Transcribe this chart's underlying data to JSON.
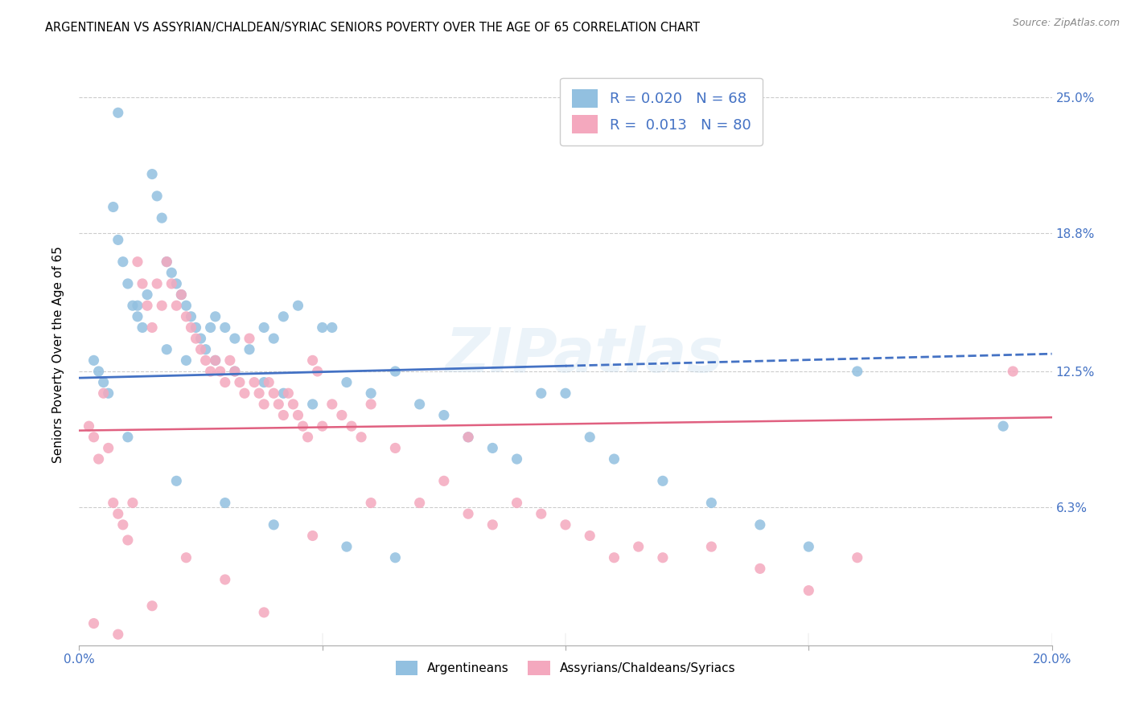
{
  "title": "ARGENTINEAN VS ASSYRIAN/CHALDEAN/SYRIAC SENIORS POVERTY OVER THE AGE OF 65 CORRELATION CHART",
  "source": "Source: ZipAtlas.com",
  "ylabel": "Seniors Poverty Over the Age of 65",
  "xlim": [
    0.0,
    0.2
  ],
  "ylim": [
    0.0,
    0.265
  ],
  "yticks": [
    0.063,
    0.125,
    0.188,
    0.25
  ],
  "ytick_labels": [
    "6.3%",
    "12.5%",
    "18.8%",
    "25.0%"
  ],
  "xticks": [
    0.0,
    0.05,
    0.1,
    0.15,
    0.2
  ],
  "xtick_labels": [
    "0.0%",
    "",
    "",
    "",
    "20.0%"
  ],
  "blue_R": "R = 0.020",
  "blue_N": "N = 68",
  "pink_R": "R = 0.013",
  "pink_N": "N = 80",
  "blue_color": "#92c0e0",
  "pink_color": "#f4a8be",
  "blue_line_color": "#4472c4",
  "pink_line_color": "#e06080",
  "tick_color": "#4472c4",
  "title_fontsize": 10.5,
  "blue_trend_x0": 0.0,
  "blue_trend_y0": 0.122,
  "blue_trend_x1": 0.2,
  "blue_trend_y1": 0.133,
  "pink_trend_x0": 0.0,
  "pink_trend_y0": 0.098,
  "pink_trend_x1": 0.2,
  "pink_trend_y1": 0.104,
  "blue_scatter_x": [
    0.003,
    0.004,
    0.005,
    0.006,
    0.007,
    0.008,
    0.009,
    0.01,
    0.011,
    0.012,
    0.013,
    0.014,
    0.015,
    0.016,
    0.017,
    0.018,
    0.019,
    0.02,
    0.021,
    0.022,
    0.023,
    0.024,
    0.025,
    0.026,
    0.027,
    0.028,
    0.03,
    0.032,
    0.035,
    0.038,
    0.04,
    0.042,
    0.045,
    0.05,
    0.055,
    0.06,
    0.065,
    0.07,
    0.075,
    0.08,
    0.085,
    0.09,
    0.095,
    0.1,
    0.105,
    0.11,
    0.12,
    0.13,
    0.14,
    0.15,
    0.008,
    0.012,
    0.018,
    0.022,
    0.028,
    0.032,
    0.038,
    0.042,
    0.048,
    0.052,
    0.01,
    0.02,
    0.03,
    0.04,
    0.055,
    0.065,
    0.16,
    0.19
  ],
  "blue_scatter_y": [
    0.13,
    0.125,
    0.12,
    0.115,
    0.2,
    0.185,
    0.175,
    0.165,
    0.155,
    0.15,
    0.145,
    0.16,
    0.215,
    0.205,
    0.195,
    0.175,
    0.17,
    0.165,
    0.16,
    0.155,
    0.15,
    0.145,
    0.14,
    0.135,
    0.145,
    0.15,
    0.145,
    0.14,
    0.135,
    0.145,
    0.14,
    0.15,
    0.155,
    0.145,
    0.12,
    0.115,
    0.125,
    0.11,
    0.105,
    0.095,
    0.09,
    0.085,
    0.115,
    0.115,
    0.095,
    0.085,
    0.075,
    0.065,
    0.055,
    0.045,
    0.243,
    0.155,
    0.135,
    0.13,
    0.13,
    0.125,
    0.12,
    0.115,
    0.11,
    0.145,
    0.095,
    0.075,
    0.065,
    0.055,
    0.045,
    0.04,
    0.125,
    0.1
  ],
  "pink_scatter_x": [
    0.002,
    0.003,
    0.004,
    0.005,
    0.006,
    0.007,
    0.008,
    0.009,
    0.01,
    0.011,
    0.012,
    0.013,
    0.014,
    0.015,
    0.016,
    0.017,
    0.018,
    0.019,
    0.02,
    0.021,
    0.022,
    0.023,
    0.024,
    0.025,
    0.026,
    0.027,
    0.028,
    0.029,
    0.03,
    0.031,
    0.032,
    0.033,
    0.034,
    0.035,
    0.036,
    0.037,
    0.038,
    0.039,
    0.04,
    0.041,
    0.042,
    0.043,
    0.044,
    0.045,
    0.046,
    0.047,
    0.048,
    0.049,
    0.05,
    0.052,
    0.054,
    0.056,
    0.058,
    0.06,
    0.065,
    0.07,
    0.075,
    0.08,
    0.085,
    0.09,
    0.095,
    0.1,
    0.105,
    0.11,
    0.115,
    0.12,
    0.13,
    0.14,
    0.15,
    0.16,
    0.003,
    0.008,
    0.015,
    0.022,
    0.03,
    0.038,
    0.048,
    0.06,
    0.08,
    0.192
  ],
  "pink_scatter_y": [
    0.1,
    0.095,
    0.085,
    0.115,
    0.09,
    0.065,
    0.06,
    0.055,
    0.048,
    0.065,
    0.175,
    0.165,
    0.155,
    0.145,
    0.165,
    0.155,
    0.175,
    0.165,
    0.155,
    0.16,
    0.15,
    0.145,
    0.14,
    0.135,
    0.13,
    0.125,
    0.13,
    0.125,
    0.12,
    0.13,
    0.125,
    0.12,
    0.115,
    0.14,
    0.12,
    0.115,
    0.11,
    0.12,
    0.115,
    0.11,
    0.105,
    0.115,
    0.11,
    0.105,
    0.1,
    0.095,
    0.13,
    0.125,
    0.1,
    0.11,
    0.105,
    0.1,
    0.095,
    0.11,
    0.09,
    0.065,
    0.075,
    0.06,
    0.055,
    0.065,
    0.06,
    0.055,
    0.05,
    0.04,
    0.045,
    0.04,
    0.045,
    0.035,
    0.025,
    0.04,
    0.01,
    0.005,
    0.018,
    0.04,
    0.03,
    0.015,
    0.05,
    0.065,
    0.095,
    0.125
  ]
}
